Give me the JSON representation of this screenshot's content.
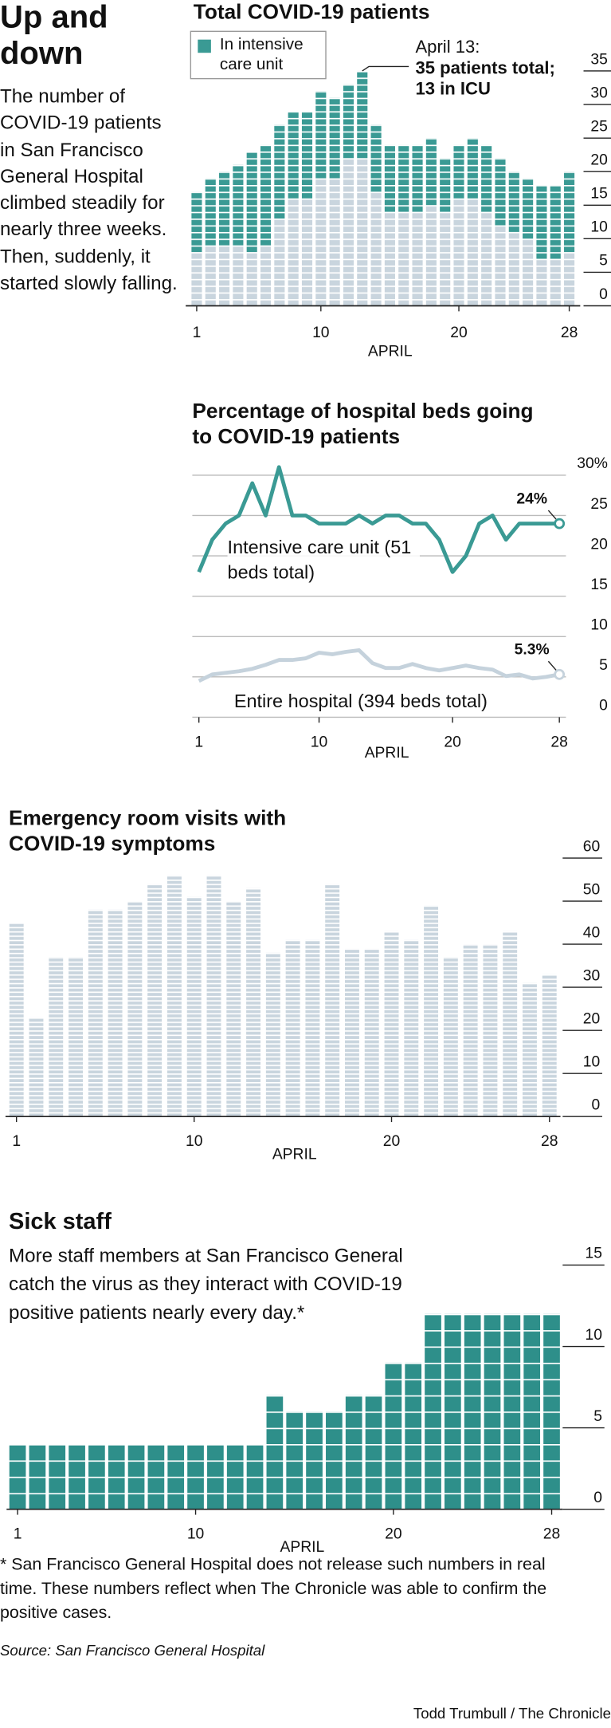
{
  "headline": "Up and down",
  "intro": "The number of COVID-19 patients in San Francisco General Hospital climbed steadily for nearly three weeks. Then, suddenly, it started slowly falling.",
  "chart_data": [
    {
      "type": "bar",
      "stacked": true,
      "title": "Total COVID-19 patients",
      "x_label": "APRIL",
      "x": [
        1,
        2,
        3,
        4,
        5,
        6,
        7,
        8,
        9,
        10,
        11,
        12,
        13,
        14,
        15,
        16,
        17,
        18,
        19,
        20,
        21,
        22,
        23,
        24,
        25,
        26,
        27,
        28
      ],
      "series": [
        {
          "color": "#c9d5de",
          "values": [
            8,
            9,
            9,
            9,
            8,
            9,
            13,
            16,
            16,
            19,
            19,
            22,
            22,
            17,
            14,
            14,
            14,
            15,
            14,
            16,
            16,
            14,
            12,
            11,
            10,
            7,
            7,
            8
          ]
        },
        {
          "name": "In intensive care unit",
          "color": "#3a9a94",
          "values": [
            9,
            10,
            11,
            12,
            15,
            15,
            14,
            13,
            13,
            13,
            12,
            11,
            13,
            10,
            10,
            10,
            10,
            10,
            8,
            8,
            9,
            10,
            10,
            9,
            9,
            11,
            11,
            12
          ]
        }
      ],
      "annotation": {
        "x": 13,
        "label": "April 13:",
        "text": "35 patients total; 13 in ICU"
      },
      "xlim": [
        1,
        28
      ],
      "xticks": [
        1,
        10,
        20,
        28
      ],
      "ylim": [
        0,
        35
      ],
      "yticks": [
        0,
        5,
        10,
        15,
        20,
        25,
        30,
        35
      ],
      "grid": false
    },
    {
      "type": "line",
      "title": "Percentage of hospital beds going to COVID-19 patients",
      "x_label": "APRIL",
      "x": [
        1,
        2,
        3,
        4,
        5,
        6,
        7,
        8,
        9,
        10,
        11,
        12,
        13,
        14,
        15,
        16,
        17,
        18,
        19,
        20,
        21,
        22,
        23,
        24,
        25,
        26,
        27,
        28
      ],
      "series": [
        {
          "name": "Intensive care unit (51 beds total)",
          "color": "#3a9a94",
          "values": [
            18,
            22,
            24,
            25,
            29,
            25,
            31,
            25,
            25,
            24,
            24,
            24,
            25,
            24,
            25,
            25,
            24,
            24,
            22,
            18,
            20,
            24,
            25,
            22,
            24,
            24,
            24,
            24
          ],
          "value_labels": [
            null,
            null,
            null,
            null,
            null,
            null,
            null,
            null,
            null,
            null,
            null,
            null,
            null,
            null,
            null,
            null,
            null,
            null,
            null,
            null,
            null,
            null,
            null,
            null,
            null,
            null,
            null,
            "24%"
          ]
        },
        {
          "name": "Entire hospital (394 beds total)",
          "color": "#c5d2dc",
          "values": [
            4.5,
            5.3,
            5.5,
            5.7,
            6.0,
            6.5,
            7.1,
            7.1,
            7.3,
            8.0,
            7.8,
            8.1,
            8.3,
            6.7,
            6.1,
            6.1,
            6.6,
            6.1,
            5.8,
            6.1,
            6.4,
            6.1,
            5.9,
            5.1,
            5.3,
            4.8,
            5.0,
            5.3
          ],
          "value_labels": [
            null,
            null,
            null,
            null,
            null,
            null,
            null,
            null,
            null,
            null,
            null,
            null,
            null,
            null,
            null,
            null,
            null,
            null,
            null,
            null,
            null,
            null,
            null,
            null,
            null,
            null,
            null,
            "5.3%"
          ]
        }
      ],
      "xlim": [
        1,
        28
      ],
      "xticks": [
        1,
        10,
        20,
        28
      ],
      "ylim": [
        0,
        32
      ],
      "yticks": [
        0,
        5,
        10,
        15,
        20,
        25,
        {
          "value": 30,
          "label": "30%"
        }
      ],
      "grid": true
    },
    {
      "type": "bar",
      "title": "Emergency room visits with COVID-19 symptoms",
      "x_label": "APRIL",
      "x": [
        1,
        2,
        3,
        4,
        5,
        6,
        7,
        8,
        9,
        10,
        11,
        12,
        13,
        14,
        15,
        16,
        17,
        18,
        19,
        20,
        21,
        22,
        23,
        24,
        25,
        26,
        27,
        28
      ],
      "values": [
        45,
        23,
        37,
        37,
        48,
        48,
        50,
        54,
        56,
        51,
        56,
        50,
        53,
        38,
        41,
        41,
        54,
        39,
        39,
        43,
        41,
        49,
        37,
        40,
        40,
        43,
        31,
        33
      ],
      "color": "#c9d5de",
      "xlim": [
        1,
        28
      ],
      "xticks": [
        1,
        10,
        20,
        28
      ],
      "ylim": [
        0,
        60
      ],
      "yticks": [
        0,
        10,
        20,
        30,
        40,
        50,
        60
      ],
      "grid": false
    },
    {
      "type": "bar",
      "title": "Sick staff",
      "subtitle": "More staff members at San Francisco General catch the virus as they interact with COVID-19 positive patients nearly every day.*",
      "x_label": "APRIL",
      "x": [
        1,
        2,
        3,
        4,
        5,
        6,
        7,
        8,
        9,
        10,
        11,
        12,
        13,
        14,
        15,
        16,
        17,
        18,
        19,
        20,
        21,
        22,
        23,
        24,
        25,
        26,
        27,
        28
      ],
      "values": [
        4,
        4,
        4,
        4,
        4,
        4,
        4,
        4,
        4,
        4,
        4,
        4,
        4,
        7,
        6,
        6,
        6,
        7,
        7,
        9,
        9,
        12,
        12,
        12,
        12,
        12,
        12,
        12
      ],
      "color": "#2e8f8a",
      "xlim": [
        1,
        28
      ],
      "xticks": [
        1,
        10,
        20,
        28
      ],
      "ylim": [
        0,
        15
      ],
      "yticks": [
        0,
        5,
        10,
        15
      ],
      "grid": false
    }
  ],
  "footnote": "* San Francisco General Hospital does not release such numbers in real time. These numbers reflect when The Chronicle was able to confirm the positive cases.",
  "source": "Source: San Francisco General Hospital",
  "credit": "Todd Trumbull / The Chronicle"
}
